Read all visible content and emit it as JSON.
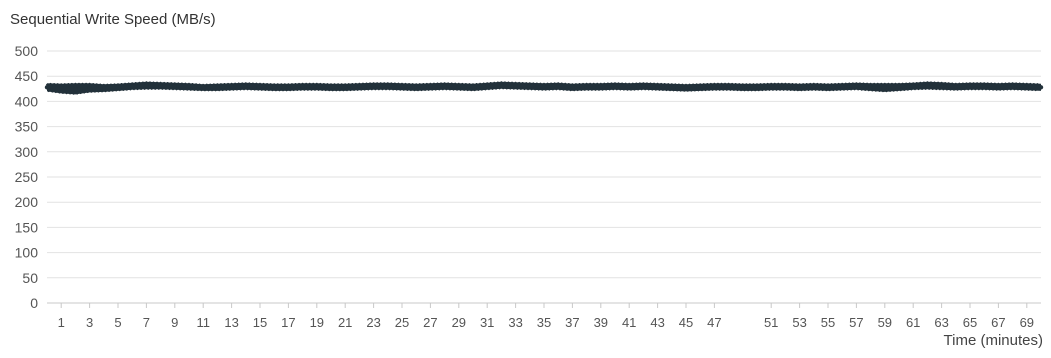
{
  "chart_data": {
    "type": "line",
    "title": "Sequential Write Speed (MB/s)",
    "xlabel": "Time (minutes)",
    "ylabel": "",
    "ylim": [
      0,
      500
    ],
    "yticks": [
      0,
      50,
      100,
      150,
      200,
      250,
      300,
      350,
      400,
      450,
      500
    ],
    "xlim": [
      0,
      70
    ],
    "xticks": [
      1,
      3,
      5,
      7,
      9,
      11,
      13,
      15,
      17,
      19,
      21,
      23,
      25,
      27,
      29,
      31,
      33,
      35,
      37,
      39,
      41,
      43,
      45,
      47,
      51,
      53,
      55,
      57,
      59,
      61,
      63,
      65,
      67,
      69
    ],
    "grid": "horizontal",
    "legend": "none",
    "series": [
      {
        "color": "#22313a",
        "x": [
          0,
          1,
          2,
          3,
          4,
          5,
          6,
          7,
          8,
          9,
          10,
          11,
          12,
          13,
          14,
          15,
          16,
          17,
          18,
          19,
          20,
          21,
          22,
          23,
          24,
          25,
          26,
          27,
          28,
          29,
          30,
          31,
          32,
          33,
          34,
          35,
          36,
          37,
          38,
          39,
          40,
          41,
          42,
          43,
          44,
          45,
          46,
          47,
          48,
          49,
          50,
          51,
          52,
          53,
          54,
          55,
          56,
          57,
          58,
          59,
          60,
          61,
          62,
          63,
          64,
          65,
          66,
          67,
          68,
          69,
          70
        ],
        "values": [
          428,
          426,
          424,
          426,
          425,
          428,
          430,
          432,
          431,
          430,
          429,
          427,
          428,
          429,
          430,
          429,
          428,
          428,
          429,
          429,
          428,
          428,
          429,
          430,
          430,
          429,
          428,
          429,
          430,
          429,
          428,
          430,
          432,
          431,
          430,
          429,
          430,
          428,
          429,
          429,
          430,
          429,
          430,
          429,
          428,
          427,
          428,
          429,
          429,
          428,
          428,
          429,
          429,
          428,
          429,
          428,
          429,
          430,
          428,
          428,
          429,
          430,
          431,
          430,
          429,
          430,
          430,
          429,
          430,
          429,
          428
        ],
        "band_min": [
          420,
          416,
          414,
          418,
          419,
          421,
          423,
          424,
          424,
          423,
          422,
          421,
          421,
          422,
          423,
          422,
          421,
          421,
          422,
          422,
          421,
          421,
          422,
          423,
          423,
          422,
          421,
          422,
          423,
          422,
          421,
          423,
          425,
          424,
          423,
          422,
          423,
          421,
          422,
          422,
          423,
          422,
          423,
          422,
          421,
          420,
          421,
          422,
          422,
          421,
          421,
          422,
          422,
          421,
          422,
          421,
          422,
          423,
          421,
          419,
          421,
          423,
          424,
          423,
          422,
          423,
          423,
          422,
          423,
          422,
          421
        ],
        "band_max": [
          436,
          435,
          436,
          436,
          434,
          435,
          437,
          439,
          438,
          437,
          436,
          434,
          435,
          436,
          437,
          436,
          435,
          435,
          436,
          436,
          435,
          435,
          436,
          437,
          437,
          436,
          435,
          436,
          437,
          436,
          435,
          437,
          439,
          438,
          437,
          436,
          437,
          435,
          436,
          436,
          437,
          436,
          437,
          436,
          435,
          434,
          435,
          436,
          436,
          435,
          435,
          436,
          436,
          435,
          436,
          435,
          436,
          437,
          436,
          436,
          436,
          437,
          439,
          438,
          436,
          437,
          437,
          436,
          437,
          436,
          435
        ]
      }
    ]
  }
}
